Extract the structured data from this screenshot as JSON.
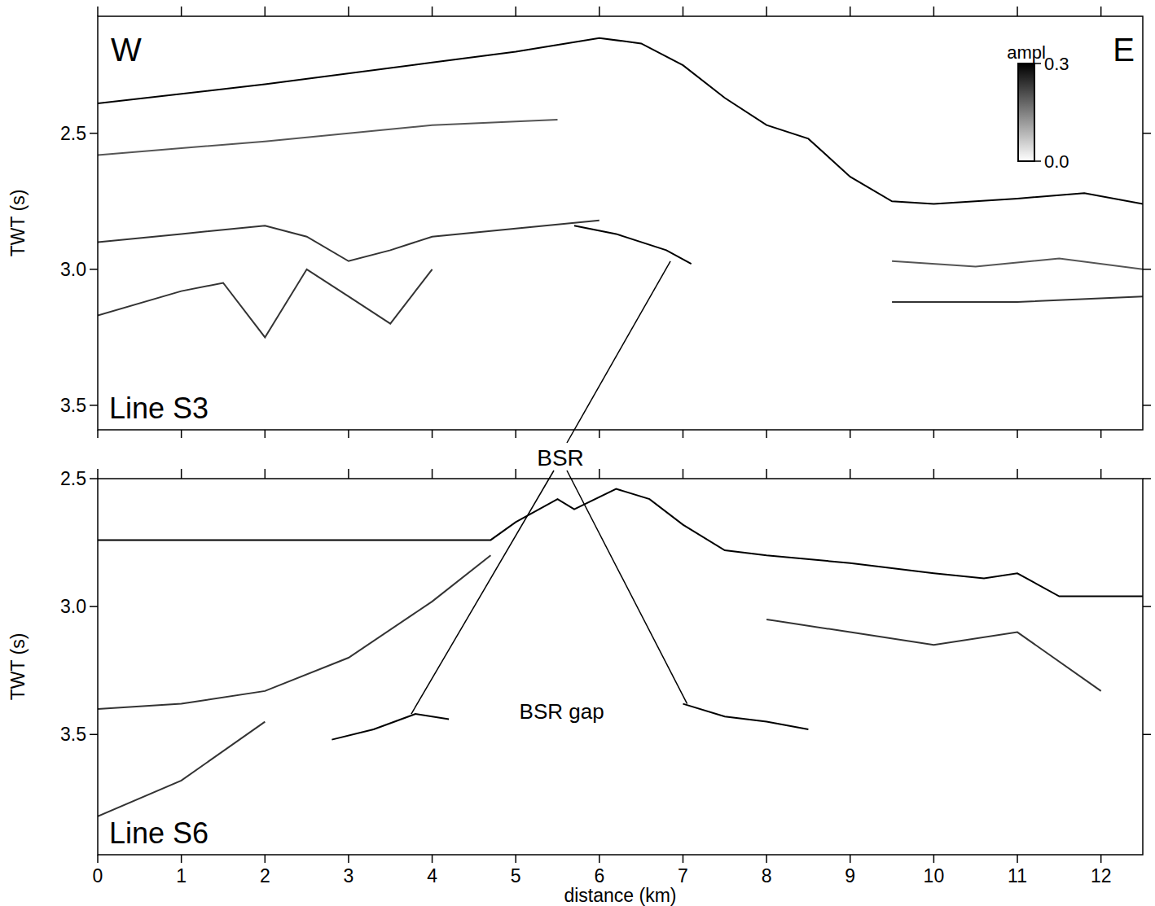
{
  "chart_data": [
    {
      "type": "line",
      "y_label": "TWT (s)",
      "panel_label": "Line S3",
      "west": "W",
      "east": "E",
      "xlim": [
        0,
        12.5
      ],
      "xticks": [
        0,
        1,
        2,
        3,
        4,
        5,
        6,
        7,
        8,
        9,
        10,
        11,
        12
      ],
      "ylim": [
        3.59,
        2.07
      ],
      "yticks": [
        2.5,
        {
          "value": 3,
          "label": "3.0"
        },
        3.5
      ],
      "tick_labels": "y",
      "colorbar": {
        "label": "ampl",
        "range": [
          0,
          0.3
        ],
        "ticks": [
          {
            "value": 0,
            "label": "0.0"
          },
          {
            "value": 0.3,
            "label": "0.3"
          }
        ]
      },
      "series": [
        {
          "color": "#000000",
          "x": [
            0,
            2,
            4,
            5,
            6,
            6.5,
            7,
            7.5,
            8,
            8.5,
            9,
            9.5,
            10,
            11,
            11.8,
            12.5
          ],
          "values": [
            2.39,
            2.32,
            2.24,
            2.2,
            2.15,
            2.17,
            2.25,
            2.37,
            2.47,
            2.52,
            2.66,
            2.75,
            2.76,
            2.74,
            2.72,
            2.76
          ]
        },
        {
          "color": "#555555",
          "x": [
            0,
            2,
            4,
            5.5
          ],
          "values": [
            2.58,
            2.53,
            2.47,
            2.45
          ]
        },
        {
          "color": "#333333",
          "x": [
            0,
            1,
            2,
            2.5,
            3,
            3.5,
            4,
            5,
            6
          ],
          "values": [
            2.9,
            2.87,
            2.84,
            2.88,
            2.97,
            2.93,
            2.88,
            2.85,
            2.82
          ]
        },
        {
          "color": "#333333",
          "x": [
            0,
            1,
            1.5,
            2,
            2.5,
            3,
            3.5,
            4
          ],
          "values": [
            3.17,
            3.08,
            3.05,
            3.25,
            3.0,
            3.1,
            3.2,
            3.0
          ]
        },
        {
          "color": "#333333",
          "x": [
            9.5,
            10,
            11,
            12.5
          ],
          "values": [
            3.12,
            3.12,
            3.12,
            3.1
          ]
        },
        {
          "color": "#555555",
          "x": [
            9.5,
            10.5,
            11.5,
            12.5
          ],
          "values": [
            2.97,
            2.99,
            2.96,
            3.0
          ]
        },
        {
          "color": "#000000",
          "x": [
            5.7,
            6.2,
            6.8,
            7.1
          ],
          "values": [
            2.84,
            2.87,
            2.93,
            2.98
          ]
        }
      ],
      "bsr_targets": [
        {
          "x": 6.85,
          "y": 2.97
        }
      ]
    },
    {
      "type": "line",
      "x_label": "distance (km)",
      "y_label": "TWT (s)",
      "panel_label": "Line S6",
      "xlim": [
        0,
        12.5
      ],
      "xticks": [
        0,
        1,
        2,
        3,
        4,
        5,
        6,
        7,
        8,
        9,
        10,
        11,
        12
      ],
      "ylim": [
        3.97,
        2.5
      ],
      "yticks": [
        2.5,
        {
          "value": 3,
          "label": "3.0"
        },
        3.5
      ],
      "series": [
        {
          "color": "#000000",
          "x": [
            0,
            4.7,
            5.0,
            5.5,
            5.7,
            6.2,
            6.6,
            7,
            7.5,
            8,
            9,
            10,
            10.6,
            11,
            11.5,
            12.5
          ],
          "values": [
            2.74,
            2.74,
            2.67,
            2.58,
            2.62,
            2.54,
            2.58,
            2.68,
            2.78,
            2.8,
            2.83,
            2.87,
            2.89,
            2.87,
            2.96,
            2.96
          ]
        },
        {
          "color": "#333333",
          "x": [
            0,
            1,
            2,
            3,
            4,
            4.7
          ],
          "values": [
            3.4,
            3.38,
            3.33,
            3.2,
            2.98,
            2.8
          ]
        },
        {
          "color": "#333333",
          "x": [
            0,
            1,
            2
          ],
          "values": [
            3.82,
            3.68,
            3.45
          ]
        },
        {
          "color": "#333333",
          "x": [
            8,
            9,
            10,
            11,
            12
          ],
          "values": [
            3.05,
            3.1,
            3.15,
            3.1,
            3.33
          ]
        },
        {
          "color": "#000000",
          "x": [
            2.8,
            3.3,
            3.8,
            4.2
          ],
          "values": [
            3.52,
            3.48,
            3.42,
            3.44
          ]
        },
        {
          "color": "#000000",
          "x": [
            7.0,
            7.5,
            8.0,
            8.5
          ],
          "values": [
            3.38,
            3.43,
            3.45,
            3.48
          ]
        }
      ],
      "bsr_targets": [
        {
          "x": 3.75,
          "y": 3.42
        },
        {
          "x": 7.05,
          "y": 3.38
        }
      ],
      "annotations": [
        {
          "text": "BSR gap",
          "x": 5.55,
          "y": 3.44
        }
      ]
    }
  ],
  "bsr_label": "BSR"
}
